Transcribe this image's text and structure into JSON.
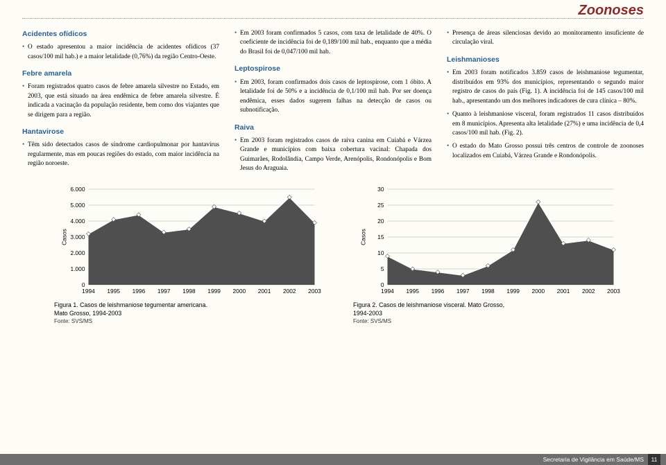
{
  "header": {
    "title": "Zoonoses"
  },
  "col1": {
    "s1": {
      "h": "Acidentes ofídicos",
      "p1": "O estado apresentou a maior incidência de acidentes ofídicos (37 casos/100 mil hab.) e a maior letalidade (0,76%) da região Centro-Oeste."
    },
    "s2": {
      "h": "Febre amarela",
      "p1": "Foram registrados quatro casos de febre amarela silvestre no Estado, em 2003, que está situado na área endêmica de febre amarela silvestre. É indicada a vacinação da população residente, bem como dos viajantes que se dirigem para a região."
    },
    "s3": {
      "h": "Hantavirose",
      "p1": "Têm sido detectados casos de síndrome cardiopulmonar por hantavírus regularmente, mas em poucas regiões do estado, com maior incidência na região noroeste."
    }
  },
  "col2": {
    "p0": "Em 2003 foram confirmados 5 casos, com taxa de letalidade de 40%. O coeficiente de incidência foi de 0,189/100 mil hab., enquanto que a média do Brasil foi de 0,047/100 mil hab.",
    "s1": {
      "h": "Leptospirose",
      "p1": "Em 2003, foram confirmados dois casos de leptospirose, com 1 óbito. A letalidade foi de 50% e a incidência de 0,1/100 mil hab. Por ser doença endêmica, esses dados sugerem falhas na detecção de casos ou subnotificação."
    },
    "s2": {
      "h": "Raiva",
      "p1": "Em 2003 foram registrados casos de raiva canina em Cuiabá e Várzea Grande e municípios com baixa cobertura vacinal: Chapada dos Guimarães, Rodolândia, Campo Verde, Arenópolis, Rondonópolis e Bom Jesus do Araguaia."
    }
  },
  "col3": {
    "p0": "Presença de áreas silenciosas devido ao monitoramento insuficiente de circulação viral.",
    "s1": {
      "h": "Leishmanioses",
      "p1": "Em 2003 foram notificados 3.859 casos de leishmaniose tegumentar, distribuídos em 93% dos municípios, representando o segundo maior registro de casos do país (Fig. 1). A incidência foi de 145 casos/100 mil hab., apresentando um dos melhores indicadores de cura clínica – 80%.",
      "p2": "Quanto à leishmaniose visceral, foram registrados 11 casos distribuídos em 8 municípios. Apresenta alta letalidade (27%) e uma incidência de 0,4 casos/100 mil hab. (Fig. 2).",
      "p3": "O estado do Mato Grosso possui três centros de controle de zoonoses localizados em Cuiabá, Várzea Grande e Rondonópolis."
    }
  },
  "chart1": {
    "type": "area",
    "ylabel": "Casos",
    "yticks": [
      "0",
      "1.000",
      "2.000",
      "3.000",
      "4.000",
      "5.000",
      "6.000"
    ],
    "ymax": 6000,
    "xlabels": [
      "1994",
      "1995",
      "1996",
      "1997",
      "1998",
      "1999",
      "2000",
      "2001",
      "2002",
      "2003"
    ],
    "values": [
      3200,
      4100,
      4400,
      3300,
      3500,
      4900,
      4500,
      4000,
      5500,
      3900
    ],
    "title1": "Figura 1. Casos de leishmaniose tegumentar americana.",
    "title2": "Mato Grosso, 1994-2003",
    "source": "Fonte: SVS/MS",
    "area_color": "#4f4f4f",
    "line_color": "#ffffff",
    "marker_color": "#ffffff",
    "grid_color": "#aaaaaa",
    "bg": "#fdfcf7"
  },
  "chart2": {
    "type": "area",
    "ylabel": "Casos",
    "yticks": [
      "0",
      "5",
      "10",
      "15",
      "20",
      "25",
      "30"
    ],
    "ymax": 30,
    "xlabels": [
      "1994",
      "1995",
      "1996",
      "1997",
      "1998",
      "1999",
      "2000",
      "2001",
      "2002",
      "2003"
    ],
    "values": [
      9,
      5,
      4,
      3,
      6,
      11,
      26,
      13,
      14,
      11
    ],
    "title1": "Figura 2. Casos de leishmaniose visceral. Mato Grosso,",
    "title2": "1994-2003",
    "source": "Fonte: SVS/MS",
    "area_color": "#4f4f4f",
    "line_color": "#ffffff",
    "marker_color": "#ffffff",
    "grid_color": "#aaaaaa",
    "bg": "#fdfcf7"
  },
  "footer": {
    "org": "Secretaria de Vigilância em Saúde/MS",
    "page": "11"
  }
}
